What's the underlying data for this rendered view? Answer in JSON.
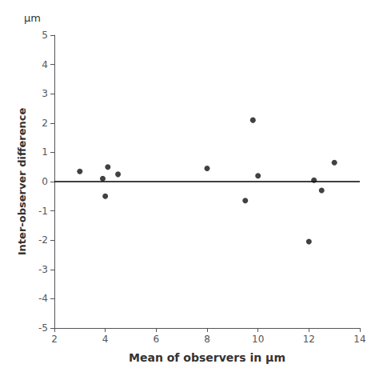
{
  "chart_data": {
    "type": "scatter",
    "x": [
      3.0,
      3.9,
      4.0,
      4.1,
      4.5,
      8.0,
      9.5,
      9.8,
      10.0,
      12.0,
      12.2,
      12.5,
      13.0
    ],
    "values": [
      0.35,
      0.1,
      -0.5,
      0.5,
      0.25,
      0.45,
      -0.65,
      2.1,
      0.2,
      -2.05,
      0.05,
      -0.3,
      0.65
    ],
    "color": "#111111",
    "xlabel": "Mean of observers in μm",
    "ylabel": "Inter-observer difference",
    "annotation": "μm",
    "reference_line": {
      "y": 0,
      "color": "#000000"
    },
    "xlim": [
      2,
      14
    ],
    "ylim": [
      -5,
      5
    ],
    "xticks": [
      2,
      4,
      6,
      8,
      10,
      12,
      14
    ],
    "yticks": [
      -5,
      -4,
      -3,
      -2,
      -1,
      0,
      1,
      2,
      3,
      4,
      5
    ],
    "grid": false
  }
}
